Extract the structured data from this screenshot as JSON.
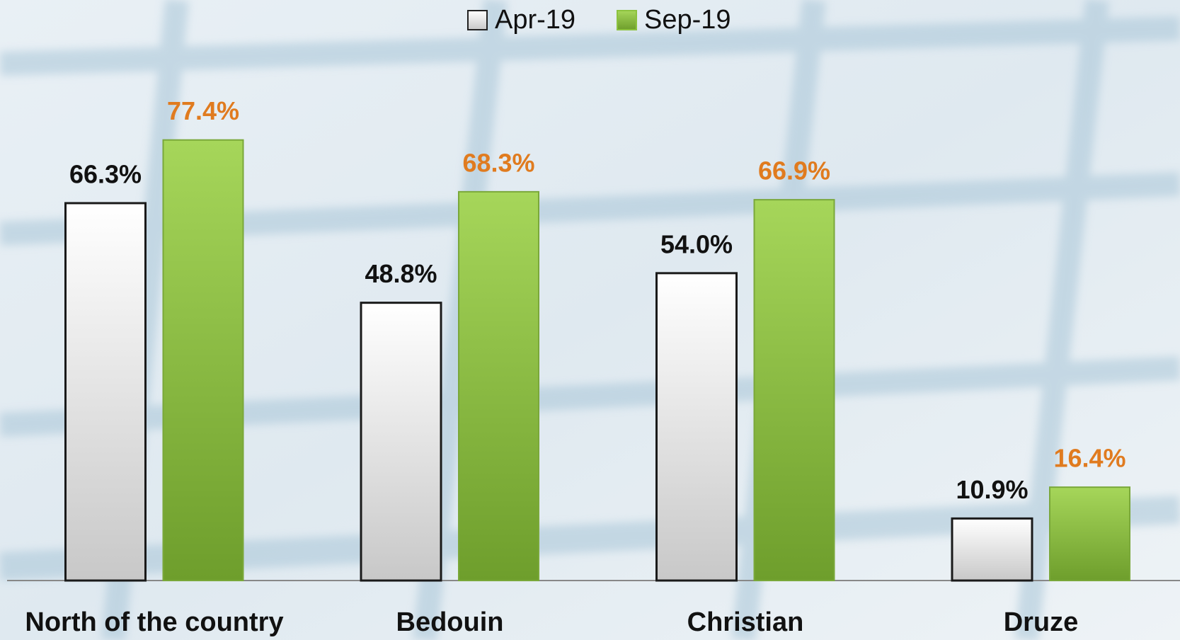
{
  "chart_data": {
    "type": "bar",
    "categories": [
      "North of the country",
      "Bedouin",
      "Christian",
      "Druze"
    ],
    "series": [
      {
        "name": "Apr-19",
        "color": "#e6e6e6",
        "label_color": "#111111",
        "values": [
          66.3,
          48.8,
          54.0,
          10.9
        ],
        "value_labels": [
          "66.3%",
          "48.8%",
          "54.0%",
          "10.9%"
        ]
      },
      {
        "name": "Sep-19",
        "color": "#8cc23f",
        "label_color": "#e07b1f",
        "values": [
          77.4,
          68.3,
          66.9,
          16.4
        ],
        "value_labels": [
          "77.4%",
          "68.3%",
          "66.9%",
          "16.4%"
        ]
      }
    ],
    "legend": "top"
  }
}
